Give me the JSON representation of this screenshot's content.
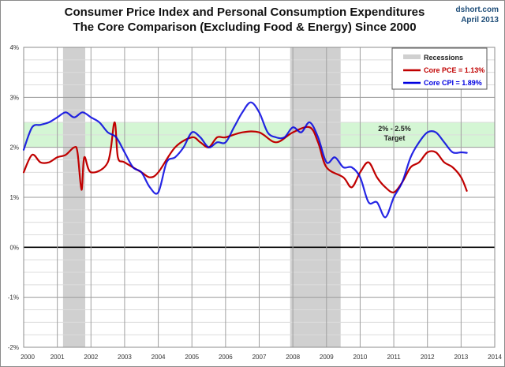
{
  "header": {
    "title_line1": "Consumer Price Index and Personal Consumption Expenditures",
    "title_line2": "The Core Comparison (Excluding Food & Energy) Since 2000",
    "source": "dshort.com",
    "date": "April 2013"
  },
  "chart_data": {
    "type": "line",
    "title": "Consumer Price Index and Personal Consumption Expenditures — The Core Comparison (Excluding Food & Energy) Since 2000",
    "xlabel": "",
    "ylabel": "",
    "xlim": [
      2000,
      2014
    ],
    "ylim": [
      -2,
      4
    ],
    "grid": true,
    "legend_position": "top-right",
    "x_ticks": [
      "2000",
      "2001",
      "2002",
      "2003",
      "2004",
      "2005",
      "2006",
      "2007",
      "2008",
      "2009",
      "2010",
      "2011",
      "2012",
      "2013",
      "2014"
    ],
    "y_ticks": [
      "4%",
      "3%",
      "2%",
      "1%",
      "0%",
      "-1%",
      "-2%"
    ],
    "y_tick_values": [
      4,
      3,
      2,
      1,
      0,
      -1,
      -2
    ],
    "colors": {
      "pce": "#c00000",
      "cpi": "#0000e0",
      "recession": "#d0d0d0",
      "target_band": "#ccf5cc",
      "zero_line": "#000000"
    },
    "recessions": [
      {
        "start": 2001.17,
        "end": 2001.83
      },
      {
        "start": 2007.92,
        "end": 2009.42
      }
    ],
    "target_band": {
      "low": 2.0,
      "high": 2.5,
      "label_line1": "2% - 2.5%",
      "label_line2": "Target"
    },
    "legend": [
      {
        "key": "recession",
        "label": "Recessions"
      },
      {
        "key": "pce",
        "label": "Core PCE = 1.13%"
      },
      {
        "key": "cpi",
        "label": "Core CPI = 1.89%"
      }
    ],
    "series": [
      {
        "name": "Core CPI",
        "key": "cpi",
        "x": [
          2000.0,
          2000.25,
          2000.5,
          2000.75,
          2001.0,
          2001.25,
          2001.5,
          2001.75,
          2002.0,
          2002.25,
          2002.5,
          2002.75,
          2003.0,
          2003.25,
          2003.5,
          2003.75,
          2004.0,
          2004.25,
          2004.5,
          2004.75,
          2005.0,
          2005.25,
          2005.5,
          2005.75,
          2006.0,
          2006.25,
          2006.5,
          2006.75,
          2007.0,
          2007.25,
          2007.5,
          2007.75,
          2008.0,
          2008.25,
          2008.5,
          2008.75,
          2009.0,
          2009.25,
          2009.5,
          2009.75,
          2010.0,
          2010.25,
          2010.5,
          2010.75,
          2011.0,
          2011.25,
          2011.5,
          2011.75,
          2012.0,
          2012.25,
          2012.5,
          2012.75,
          2013.0,
          2013.17
        ],
        "values": [
          1.95,
          2.4,
          2.45,
          2.5,
          2.6,
          2.7,
          2.6,
          2.7,
          2.6,
          2.5,
          2.3,
          2.2,
          1.9,
          1.6,
          1.5,
          1.2,
          1.1,
          1.7,
          1.8,
          2.0,
          2.3,
          2.2,
          2.0,
          2.1,
          2.1,
          2.4,
          2.7,
          2.9,
          2.7,
          2.3,
          2.2,
          2.2,
          2.4,
          2.3,
          2.5,
          2.2,
          1.7,
          1.8,
          1.6,
          1.6,
          1.4,
          0.9,
          0.9,
          0.6,
          1.0,
          1.3,
          1.8,
          2.1,
          2.3,
          2.3,
          2.1,
          1.9,
          1.9,
          1.89
        ]
      },
      {
        "name": "Core PCE",
        "key": "pce",
        "x": [
          2000.0,
          2000.25,
          2000.5,
          2000.75,
          2001.0,
          2001.25,
          2001.5,
          2001.6,
          2001.72,
          2001.8,
          2002.0,
          2002.5,
          2002.7,
          2002.8,
          2003.0,
          2003.5,
          2003.75,
          2004.0,
          2004.5,
          2005.0,
          2005.25,
          2005.5,
          2005.75,
          2006.0,
          2006.5,
          2007.0,
          2007.5,
          2008.0,
          2008.5,
          2008.75,
          2009.0,
          2009.5,
          2009.75,
          2010.0,
          2010.25,
          2010.5,
          2010.75,
          2011.0,
          2011.25,
          2011.5,
          2011.75,
          2012.0,
          2012.25,
          2012.5,
          2012.75,
          2013.0,
          2013.17
        ],
        "values": [
          1.5,
          1.85,
          1.7,
          1.7,
          1.8,
          1.85,
          2.0,
          1.9,
          1.15,
          1.8,
          1.5,
          1.7,
          2.5,
          1.8,
          1.7,
          1.5,
          1.4,
          1.5,
          2.0,
          2.2,
          2.1,
          2.0,
          2.2,
          2.2,
          2.3,
          2.3,
          2.1,
          2.3,
          2.4,
          2.1,
          1.6,
          1.4,
          1.2,
          1.5,
          1.7,
          1.4,
          1.2,
          1.1,
          1.3,
          1.6,
          1.7,
          1.9,
          1.9,
          1.7,
          1.6,
          1.4,
          1.13
        ]
      }
    ]
  }
}
